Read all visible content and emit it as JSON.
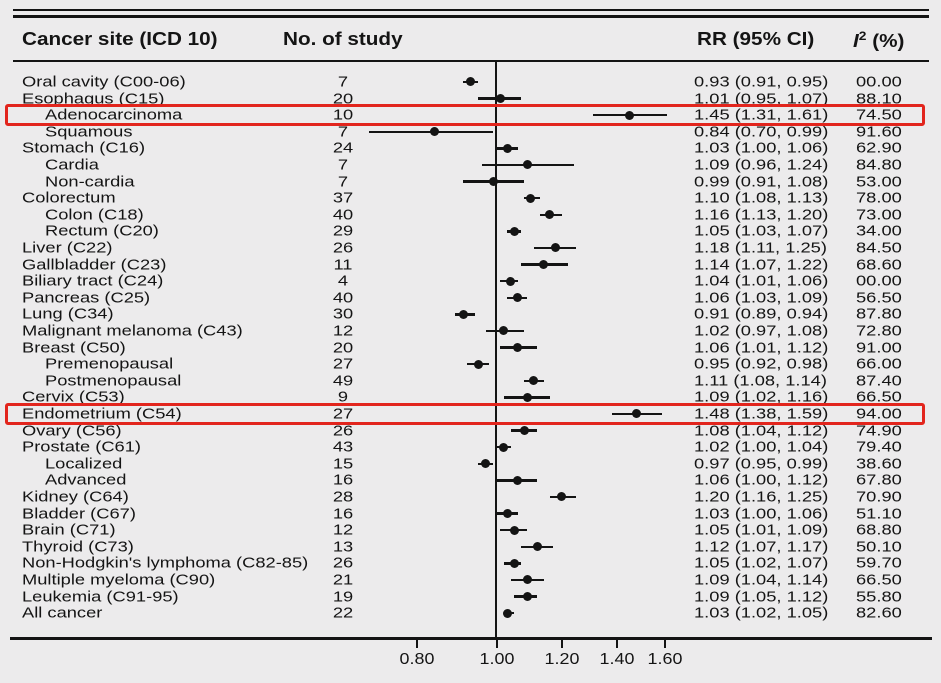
{
  "header": {
    "col_site": "Cancer site (ICD 10)",
    "col_n": "No. of study",
    "col_rr": "RR (95% CI)",
    "col_i2_sym": "I",
    "col_i2_sup": "2",
    "col_i2_unit": "(%)"
  },
  "colors": {
    "ink": "#141414",
    "background": "#ecebec",
    "highlight_box": "#e2251d"
  },
  "chart_data": {
    "type": "forest",
    "title": "",
    "columns": [
      "Cancer site (ICD 10)",
      "No. of study",
      "RR (95% CI)",
      "I2 (%)"
    ],
    "x_axis": {
      "scale": "log",
      "reference_line": 1.0,
      "ticks": [
        0.8,
        1.0,
        1.2,
        1.4,
        1.6
      ],
      "tick_labels": [
        "0.80",
        "1.00",
        "1.20",
        "1.40",
        "1.60"
      ]
    },
    "rows": [
      {
        "label": "Oral cavity (C00-06)",
        "indent": false,
        "n_study": "7",
        "rr": 0.93,
        "ci_low": 0.91,
        "ci_high": 0.95,
        "rr_text": "0.93 (0.91, 0.95)",
        "i2": "00.00",
        "highlighted": false
      },
      {
        "label": "Esophagus (C15)",
        "indent": false,
        "n_study": "20",
        "rr": 1.01,
        "ci_low": 0.95,
        "ci_high": 1.07,
        "rr_text": "1.01 (0.95, 1.07)",
        "i2": "88.10",
        "highlighted": false
      },
      {
        "label": "Adenocarcinoma",
        "indent": true,
        "n_study": "10",
        "rr": 1.45,
        "ci_low": 1.31,
        "ci_high": 1.61,
        "rr_text": "1.45 (1.31, 1.61)",
        "i2": "74.50",
        "highlighted": true
      },
      {
        "label": "Squamous",
        "indent": true,
        "n_study": "7",
        "rr": 0.84,
        "ci_low": 0.7,
        "ci_high": 0.99,
        "rr_text": "0.84 (0.70, 0.99)",
        "i2": "91.60",
        "highlighted": false
      },
      {
        "label": "Stomach (C16)",
        "indent": false,
        "n_study": "24",
        "rr": 1.03,
        "ci_low": 1.0,
        "ci_high": 1.06,
        "rr_text": "1.03 (1.00, 1.06)",
        "i2": "62.90",
        "highlighted": false
      },
      {
        "label": "Cardia",
        "indent": true,
        "n_study": "7",
        "rr": 1.09,
        "ci_low": 0.96,
        "ci_high": 1.24,
        "rr_text": "1.09 (0.96, 1.24)",
        "i2": "84.80",
        "highlighted": false
      },
      {
        "label": "Non-cardia",
        "indent": true,
        "n_study": "7",
        "rr": 0.99,
        "ci_low": 0.91,
        "ci_high": 1.08,
        "rr_text": "0.99 (0.91, 1.08)",
        "i2": "53.00",
        "highlighted": false
      },
      {
        "label": "Colorectum",
        "indent": false,
        "n_study": "37",
        "rr": 1.1,
        "ci_low": 1.08,
        "ci_high": 1.13,
        "rr_text": "1.10 (1.08, 1.13)",
        "i2": "78.00",
        "highlighted": false
      },
      {
        "label": "Colon (C18)",
        "indent": true,
        "n_study": "40",
        "rr": 1.16,
        "ci_low": 1.13,
        "ci_high": 1.2,
        "rr_text": "1.16 (1.13, 1.20)",
        "i2": "73.00",
        "highlighted": false
      },
      {
        "label": "Rectum (C20)",
        "indent": true,
        "n_study": "29",
        "rr": 1.05,
        "ci_low": 1.03,
        "ci_high": 1.07,
        "rr_text": "1.05 (1.03, 1.07)",
        "i2": "34.00",
        "highlighted": false
      },
      {
        "label": "Liver (C22)",
        "indent": false,
        "n_study": "26",
        "rr": 1.18,
        "ci_low": 1.11,
        "ci_high": 1.25,
        "rr_text": "1.18 (1.11, 1.25)",
        "i2": "84.50",
        "highlighted": false
      },
      {
        "label": "Gallbladder (C23)",
        "indent": false,
        "n_study": "11",
        "rr": 1.14,
        "ci_low": 1.07,
        "ci_high": 1.22,
        "rr_text": "1.14 (1.07, 1.22)",
        "i2": "68.60",
        "highlighted": false
      },
      {
        "label": "Biliary tract (C24)",
        "indent": false,
        "n_study": "4",
        "rr": 1.04,
        "ci_low": 1.01,
        "ci_high": 1.06,
        "rr_text": "1.04 (1.01, 1.06)",
        "i2": "00.00",
        "highlighted": false
      },
      {
        "label": "Pancreas (C25)",
        "indent": false,
        "n_study": "40",
        "rr": 1.06,
        "ci_low": 1.03,
        "ci_high": 1.09,
        "rr_text": "1.06 (1.03, 1.09)",
        "i2": "56.50",
        "highlighted": false
      },
      {
        "label": "Lung (C34)",
        "indent": false,
        "n_study": "30",
        "rr": 0.91,
        "ci_low": 0.89,
        "ci_high": 0.94,
        "rr_text": "0.91 (0.89, 0.94)",
        "i2": "87.80",
        "highlighted": false
      },
      {
        "label": "Malignant melanoma (C43)",
        "indent": false,
        "n_study": "12",
        "rr": 1.02,
        "ci_low": 0.97,
        "ci_high": 1.08,
        "rr_text": "1.02 (0.97, 1.08)",
        "i2": "72.80",
        "highlighted": false
      },
      {
        "label": "Breast (C50)",
        "indent": false,
        "n_study": "20",
        "rr": 1.06,
        "ci_low": 1.01,
        "ci_high": 1.12,
        "rr_text": "1.06 (1.01, 1.12)",
        "i2": "91.00",
        "highlighted": false
      },
      {
        "label": "Premenopausal",
        "indent": true,
        "n_study": "27",
        "rr": 0.95,
        "ci_low": 0.92,
        "ci_high": 0.98,
        "rr_text": "0.95 (0.92, 0.98)",
        "i2": "66.00",
        "highlighted": false
      },
      {
        "label": "Postmenopausal",
        "indent": true,
        "n_study": "49",
        "rr": 1.11,
        "ci_low": 1.08,
        "ci_high": 1.14,
        "rr_text": "1.11 (1.08, 1.14)",
        "i2": "87.40",
        "highlighted": false
      },
      {
        "label": "Cervix (C53)",
        "indent": false,
        "n_study": "9",
        "rr": 1.09,
        "ci_low": 1.02,
        "ci_high": 1.16,
        "rr_text": "1.09 (1.02, 1.16)",
        "i2": "66.50",
        "highlighted": false
      },
      {
        "label": "Endometrium (C54)",
        "indent": false,
        "n_study": "27",
        "rr": 1.48,
        "ci_low": 1.38,
        "ci_high": 1.59,
        "rr_text": "1.48 (1.38, 1.59)",
        "i2": "94.00",
        "highlighted": true
      },
      {
        "label": "Ovary (C56)",
        "indent": false,
        "n_study": "26",
        "rr": 1.08,
        "ci_low": 1.04,
        "ci_high": 1.12,
        "rr_text": "1.08 (1.04, 1.12)",
        "i2": "74.90",
        "highlighted": false
      },
      {
        "label": "Prostate (C61)",
        "indent": false,
        "n_study": "43",
        "rr": 1.02,
        "ci_low": 1.0,
        "ci_high": 1.04,
        "rr_text": "1.02 (1.00, 1.04)",
        "i2": "79.40",
        "highlighted": false
      },
      {
        "label": "Localized",
        "indent": true,
        "n_study": "15",
        "rr": 0.97,
        "ci_low": 0.95,
        "ci_high": 0.99,
        "rr_text": "0.97 (0.95, 0.99)",
        "i2": "38.60",
        "highlighted": false
      },
      {
        "label": "Advanced",
        "indent": true,
        "n_study": "16",
        "rr": 1.06,
        "ci_low": 1.0,
        "ci_high": 1.12,
        "rr_text": "1.06 (1.00, 1.12)",
        "i2": "67.80",
        "highlighted": false
      },
      {
        "label": "Kidney (C64)",
        "indent": false,
        "n_study": "28",
        "rr": 1.2,
        "ci_low": 1.16,
        "ci_high": 1.25,
        "rr_text": "1.20 (1.16, 1.25)",
        "i2": "70.90",
        "highlighted": false
      },
      {
        "label": "Bladder (C67)",
        "indent": false,
        "n_study": "16",
        "rr": 1.03,
        "ci_low": 1.0,
        "ci_high": 1.06,
        "rr_text": "1.03 (1.00, 1.06)",
        "i2": "51.10",
        "highlighted": false
      },
      {
        "label": "Brain (C71)",
        "indent": false,
        "n_study": "12",
        "rr": 1.05,
        "ci_low": 1.01,
        "ci_high": 1.09,
        "rr_text": "1.05 (1.01, 1.09)",
        "i2": "68.80",
        "highlighted": false
      },
      {
        "label": "Thyroid (C73)",
        "indent": false,
        "n_study": "13",
        "rr": 1.12,
        "ci_low": 1.07,
        "ci_high": 1.17,
        "rr_text": "1.12 (1.07, 1.17)",
        "i2": "50.10",
        "highlighted": false
      },
      {
        "label": "Non-Hodgkin's lymphoma (C82-85)",
        "indent": false,
        "n_study": "26",
        "rr": 1.05,
        "ci_low": 1.02,
        "ci_high": 1.07,
        "rr_text": "1.05 (1.02, 1.07)",
        "i2": "59.70",
        "highlighted": false
      },
      {
        "label": "Multiple myeloma (C90)",
        "indent": false,
        "n_study": "21",
        "rr": 1.09,
        "ci_low": 1.04,
        "ci_high": 1.14,
        "rr_text": "1.09 (1.04, 1.14)",
        "i2": "66.50",
        "highlighted": false
      },
      {
        "label": "Leukemia (C91-95)",
        "indent": false,
        "n_study": "19",
        "rr": 1.09,
        "ci_low": 1.05,
        "ci_high": 1.12,
        "rr_text": "1.09 (1.05, 1.12)",
        "i2": "55.80",
        "highlighted": false
      },
      {
        "label": "All cancer",
        "indent": false,
        "n_study": "22",
        "rr": 1.03,
        "ci_low": 1.02,
        "ci_high": 1.05,
        "rr_text": "1.03 (1.02, 1.05)",
        "i2": "82.60",
        "highlighted": false
      }
    ]
  }
}
